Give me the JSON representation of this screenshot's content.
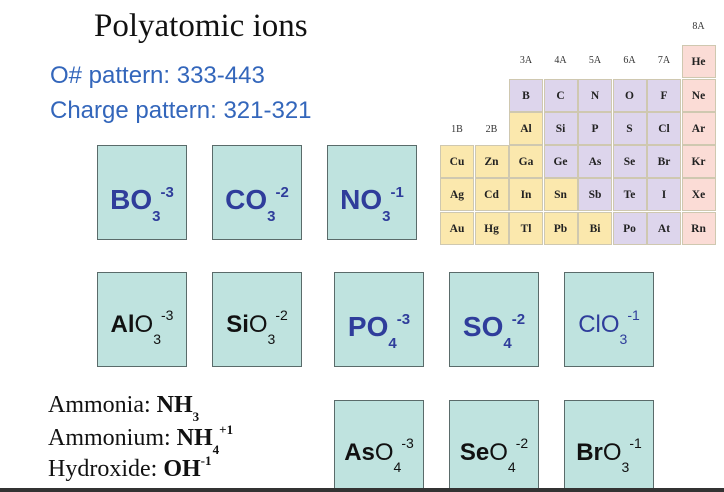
{
  "title": "Polyatomic ions",
  "patterns": {
    "oxygen": "O# pattern:  333-443",
    "charge": "Charge pattern: 321-321"
  },
  "ions": [
    {
      "symbol": "B",
      "o": "O",
      "sub": "3",
      "charge": "-3",
      "style": "blue"
    },
    {
      "symbol": "C",
      "o": "O",
      "sub": "3",
      "charge": "-2",
      "style": "blue"
    },
    {
      "symbol": "N",
      "o": "O",
      "sub": "3",
      "charge": "-1",
      "style": "blue"
    },
    {
      "symbol": "Al",
      "o": "O",
      "sub": "3",
      "charge": "-3",
      "style": "black"
    },
    {
      "symbol": "Si",
      "o": "O",
      "sub": "3",
      "charge": "-2",
      "style": "black"
    },
    {
      "symbol": "P",
      "o": "O",
      "sub": "4",
      "charge": "-3",
      "style": "blue"
    },
    {
      "symbol": "S",
      "o": "O",
      "sub": "4",
      "charge": "-2",
      "style": "blue"
    },
    {
      "symbol": "Cl",
      "o": "O",
      "sub": "3",
      "charge": "-1",
      "style": "black-light"
    },
    {
      "symbol": "As",
      "o": "O",
      "sub": "4",
      "charge": "-3",
      "style": "black"
    },
    {
      "symbol": "Se",
      "o": "O",
      "sub": "4",
      "charge": "-2",
      "style": "black"
    },
    {
      "symbol": "Br",
      "o": "O",
      "sub": "3",
      "charge": "-1",
      "style": "black"
    }
  ],
  "names": [
    {
      "label": "Ammonia:",
      "formula": "NH",
      "sub": "3",
      "sup": ""
    },
    {
      "label": "Ammonium:",
      "formula": "NH",
      "sub": "4",
      "sup": "+1"
    },
    {
      "label": "Hydroxide:",
      "formula": "OH",
      "sub": "",
      "sup": "-1"
    }
  ],
  "periodic_table": {
    "groups": [
      "1B",
      "2B",
      "3A",
      "4A",
      "5A",
      "6A",
      "7A",
      "8A"
    ],
    "rows": [
      [
        "",
        "",
        "",
        "",
        "",
        "",
        "",
        "He"
      ],
      [
        "",
        "",
        "B",
        "C",
        "N",
        "O",
        "F",
        "Ne"
      ],
      [
        "",
        "",
        "Al",
        "Si",
        "P",
        "S",
        "Cl",
        "Ar"
      ],
      [
        "Cu",
        "Zn",
        "Ga",
        "Ge",
        "As",
        "Se",
        "Br",
        "Kr"
      ],
      [
        "Ag",
        "Cd",
        "In",
        "Sn",
        "Sb",
        "Te",
        "I",
        "Xe"
      ],
      [
        "Au",
        "Hg",
        "Tl",
        "Pb",
        "Bi",
        "Po",
        "At",
        "Rn"
      ]
    ],
    "colors": {
      "metal": "#fbe8ad",
      "metalloid": "#ddd5ec",
      "noble": "#fbdcd6"
    }
  }
}
